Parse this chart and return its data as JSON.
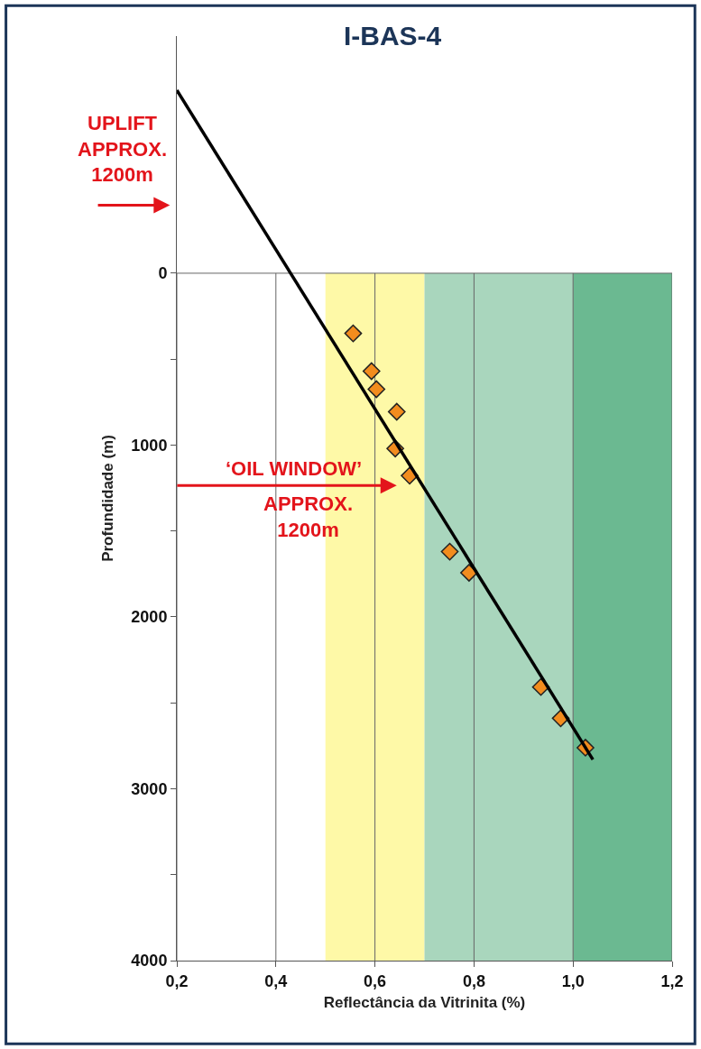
{
  "chart_data": {
    "type": "scatter",
    "title": "I-BAS-4",
    "xlabel": "Reflectância da Vitrinita (%)",
    "ylabel": "Profundidade (m)",
    "annotations": [
      "UPLIFT\nAPPROX.\n1200m",
      "‘OIL WINDOW’\nAPPROX.\n1200m"
    ],
    "ref_lines": [
      {
        "axis": "y",
        "value": 0,
        "color": "#666666"
      }
    ],
    "series": [
      {
        "color": "#f28c1e",
        "marker": "diamond",
        "x": [
          0.556,
          0.593,
          0.603,
          0.644,
          0.641,
          0.67,
          0.751,
          0.79,
          0.935,
          0.975,
          1.025
        ],
        "values": [
          350,
          570,
          675,
          806,
          1020,
          1178,
          1620,
          1743,
          2408,
          2590,
          2761
        ]
      },
      {
        "type": "line",
        "color": "#000000",
        "marker": "none",
        "line_style": "solid",
        "x": [
          0.2,
          1.04
        ],
        "values": [
          -1065,
          2830
        ]
      }
    ],
    "bands": [
      {
        "axis": "x",
        "from": 0.5,
        "to": 0.7,
        "color": "#fef9a7"
      },
      {
        "axis": "x",
        "from": 0.7,
        "to": 1.0,
        "color": "#a9d6bd"
      },
      {
        "axis": "x",
        "from": 1.0,
        "to": 1.2,
        "color": "#6bb991"
      }
    ],
    "xlim": [
      0.2,
      1.2
    ],
    "xticks": [
      {
        "value": 0.2,
        "label": "0,2"
      },
      {
        "value": 0.4,
        "label": "0,4"
      },
      {
        "value": 0.6,
        "label": "0,6"
      },
      {
        "value": 0.8,
        "label": "0,8"
      },
      {
        "value": 1.0,
        "label": "1,0"
      },
      {
        "value": 1.2,
        "label": "1,2"
      }
    ],
    "ylim": [
      4000,
      -1380
    ],
    "yticks": [
      0,
      {
        "value": 500,
        "label": null
      },
      1000,
      {
        "value": 1500,
        "label": null
      },
      2000,
      {
        "value": 2500,
        "label": null
      },
      3000,
      {
        "value": 3500,
        "label": null
      },
      4000
    ],
    "grid": "x"
  }
}
